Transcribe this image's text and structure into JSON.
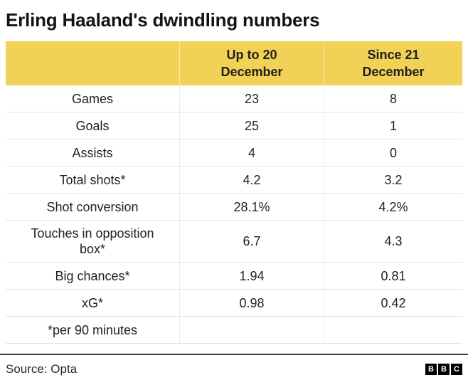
{
  "title": "Erling Haaland's dwindling numbers",
  "colors": {
    "header_yellow": "#F1D156",
    "row_divider": "#E2E2E2",
    "footer_rule": "#3A3A3A",
    "logo_black": "#000000"
  },
  "chart_data": {
    "type": "table",
    "title": "Erling Haaland's dwindling numbers",
    "columns": [
      "",
      "Up to 20 December",
      "Since 21 December"
    ],
    "header_labels": {
      "metric": "",
      "period1": "Up to 20\nDecember",
      "period2": "Since 21\nDecember"
    },
    "rows": [
      {
        "label": "Games",
        "up_to_20_dec": "23",
        "since_21_dec": "8"
      },
      {
        "label": "Goals",
        "up_to_20_dec": "25",
        "since_21_dec": "1"
      },
      {
        "label": "Assists",
        "up_to_20_dec": "4",
        "since_21_dec": "0"
      },
      {
        "label": "Total shots*",
        "up_to_20_dec": "4.2",
        "since_21_dec": "3.2"
      },
      {
        "label": "Shot conversion",
        "up_to_20_dec": "28.1%",
        "since_21_dec": "4.2%"
      },
      {
        "label": "Touches in opposition box*",
        "up_to_20_dec": "6.7",
        "since_21_dec": "4.3"
      },
      {
        "label": "Big chances*",
        "up_to_20_dec": "1.94",
        "since_21_dec": "0.81"
      },
      {
        "label": "xG*",
        "up_to_20_dec": "0.98",
        "since_21_dec": "0.42"
      },
      {
        "label": "*per 90 minutes",
        "up_to_20_dec": "",
        "since_21_dec": ""
      }
    ],
    "footnote": "*per 90 minutes",
    "source": "Source: Opta",
    "legend_position": "none",
    "grid": "row-dividers"
  },
  "footer": {
    "source": "Source: Opta",
    "logo_letters": [
      "B",
      "B",
      "C"
    ]
  }
}
